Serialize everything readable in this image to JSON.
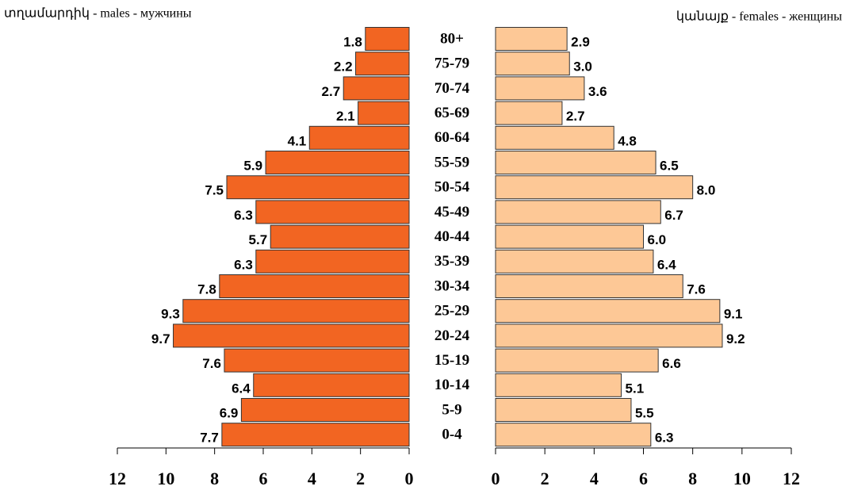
{
  "chart_data": {
    "type": "pyramid",
    "categories": [
      "80+",
      "75-79",
      "70-74",
      "65-69",
      "60-64",
      "55-59",
      "50-54",
      "45-49",
      "40-44",
      "35-39",
      "30-34",
      "25-29",
      "20-24",
      "15-19",
      "10-14",
      "5-9",
      "0-4"
    ],
    "series": [
      {
        "name": "տղամարդիկ - males - мужчины",
        "color": "#f26522",
        "values": [
          1.8,
          2.2,
          2.7,
          2.1,
          4.1,
          5.9,
          7.5,
          6.3,
          5.7,
          6.3,
          7.8,
          9.3,
          9.7,
          7.6,
          6.4,
          6.9,
          7.7
        ],
        "value_labels": [
          "1.8",
          "2.2",
          "2.7",
          "2.1",
          "4.1",
          "5.9",
          "7.5",
          "6.3",
          "5.7",
          "6.3",
          "7.8",
          "9.3",
          "9.7",
          "7.6",
          "6.4",
          "6.9",
          "7.7"
        ]
      },
      {
        "name": "կանայք - females - женщины",
        "color": "#fdc896",
        "values": [
          2.9,
          3.0,
          3.6,
          2.7,
          4.8,
          6.5,
          8.0,
          6.7,
          6.0,
          6.4,
          7.6,
          9.1,
          9.2,
          6.6,
          5.1,
          5.5,
          6.3
        ],
        "value_labels": [
          "2.9",
          "3.0",
          "3.6",
          "2.7",
          "4.8",
          "6.5",
          "8.0",
          "6.7",
          "6.0",
          "6.4",
          "7.6",
          "9.1",
          "9.2",
          "6.6",
          "5.1",
          "5.5",
          "6.3"
        ]
      }
    ],
    "xlim": [
      0,
      12
    ],
    "xticks": [
      0,
      2,
      4,
      6,
      8,
      10,
      12
    ]
  }
}
